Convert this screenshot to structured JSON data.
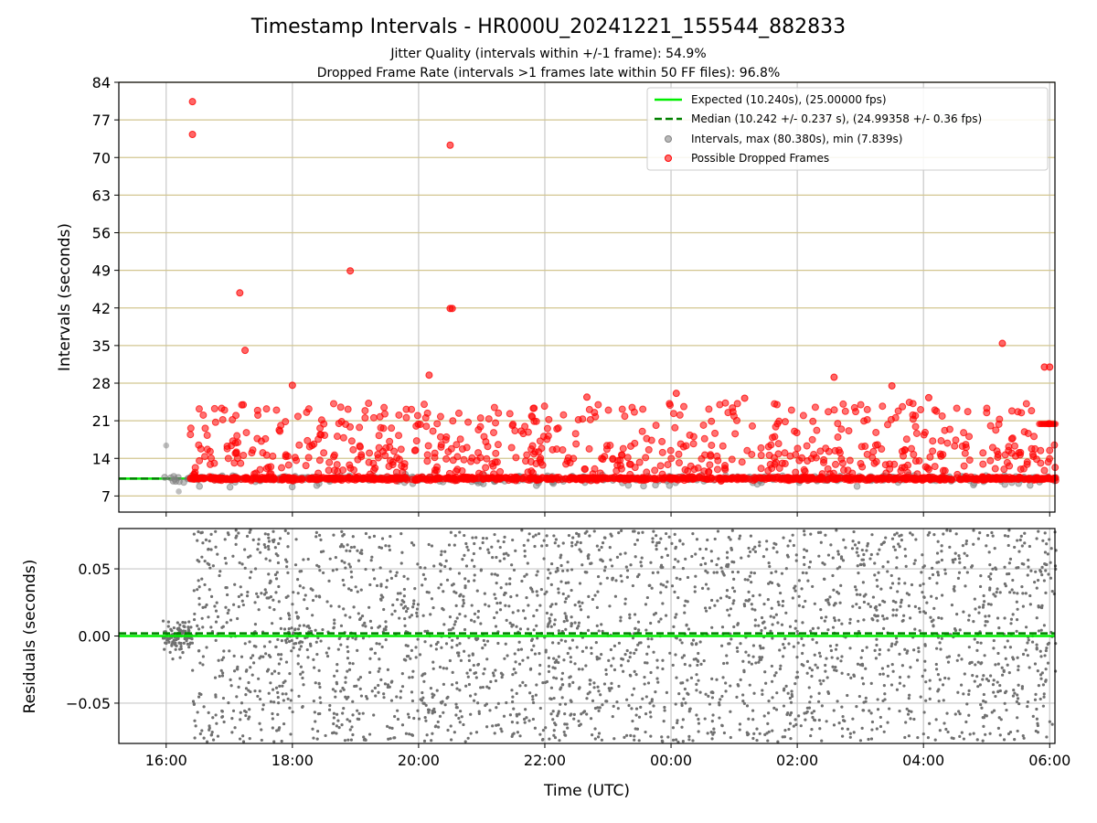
{
  "chart_data": {
    "title": "Timestamp Intervals - HR000U_20241221_155544_882833",
    "subtitles": [
      "Jitter Quality (intervals within +/-1 frame): 54.9%",
      "Dropped Frame Rate (intervals >1 frames late within 50 FF files): 96.8%"
    ],
    "xlabel": "Time (UTC)",
    "xticks": [
      "16:00",
      "18:00",
      "20:00",
      "22:00",
      "00:00",
      "02:00",
      "04:00",
      "06:00"
    ],
    "xlim": [
      "15:15",
      "06:05"
    ],
    "panels": [
      {
        "type": "scatter",
        "ylabel": "Intervals (seconds)",
        "ylim": [
          4,
          84
        ],
        "yticks": [
          7,
          14,
          21,
          28,
          35,
          42,
          49,
          56,
          63,
          70,
          77,
          84
        ],
        "grid": true,
        "legend_position": "top-right",
        "series": [
          {
            "name": "Expected (10.240s), (25.00000 fps)",
            "kind": "line",
            "style": "solid",
            "color": "#00ee00",
            "y": 10.24
          },
          {
            "name": "Median (10.242 +/- 0.237 s), (24.99358 +/- 0.36 fps)",
            "kind": "line",
            "style": "dashed",
            "color": "#008000",
            "y": 10.242
          },
          {
            "name": "Intervals, max (80.380s), min (7.839s)",
            "kind": "scatter",
            "color": "#808080",
            "max": 80.38,
            "min": 7.839
          },
          {
            "name": "Possible Dropped Frames",
            "kind": "scatter",
            "color": "#ff0000",
            "highlighted_points": [
              {
                "x": "16:25",
                "y": 80.4
              },
              {
                "x": "16:25",
                "y": 74.3
              },
              {
                "x": "20:30",
                "y": 72.3
              },
              {
                "x": "18:55",
                "y": 48.9
              },
              {
                "x": "17:10",
                "y": 44.8
              },
              {
                "x": "20:30",
                "y": 41.9
              },
              {
                "x": "20:32",
                "y": 41.9
              },
              {
                "x": "17:15",
                "y": 34.1
              },
              {
                "x": "05:15",
                "y": 35.4
              },
              {
                "x": "18:00",
                "y": 27.6
              },
              {
                "x": "20:10",
                "y": 29.5
              },
              {
                "x": "02:35",
                "y": 29.1
              },
              {
                "x": "03:30",
                "y": 27.5
              },
              {
                "x": "00:05",
                "y": 26.1
              },
              {
                "x": "04:05",
                "y": 25.3
              },
              {
                "x": "22:40",
                "y": 25.4
              },
              {
                "x": "01:10",
                "y": 25.2
              },
              {
                "x": "05:55",
                "y": 31.0
              },
              {
                "x": "06:00",
                "y": 31.0
              }
            ]
          }
        ]
      },
      {
        "type": "scatter",
        "ylabel": "Residuals (seconds)",
        "ylim": [
          -0.08,
          0.08
        ],
        "yticks": [
          -0.05,
          0.0,
          0.05
        ],
        "ytick_labels": [
          "−0.05",
          "0.00",
          "0.05"
        ],
        "grid": true,
        "series": [
          {
            "name": "",
            "kind": "scatter",
            "color": "#707070"
          },
          {
            "name": "",
            "kind": "line",
            "style": "solid",
            "color": "#00ee00",
            "y": 0.0
          },
          {
            "name": "",
            "kind": "line",
            "style": "dashed",
            "color": "#008000",
            "y": 0.002
          }
        ]
      }
    ]
  }
}
